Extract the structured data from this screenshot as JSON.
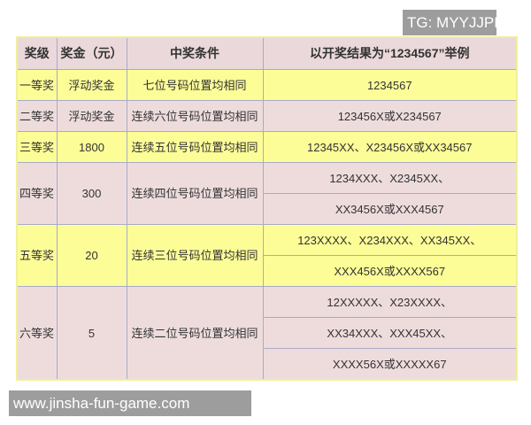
{
  "watermarks": {
    "top": "TG: MYYJJPP",
    "bottom": "www.jinsha-fun-game.com"
  },
  "colors": {
    "header_bg": "#ead8da",
    "yellow_row": "#fdfd98",
    "pink_row": "#eedcdd"
  },
  "table": {
    "headers": [
      "奖级",
      "奖金（元）",
      "中奖条件",
      "以开奖结果为“1234567”举例"
    ],
    "rows": [
      {
        "level": "一等奖",
        "prize": "浮动奖金",
        "condition": "七位号码位置均相同",
        "examples": [
          "1234567"
        ]
      },
      {
        "level": "二等奖",
        "prize": "浮动奖金",
        "condition": "连续六位号码位置均相同",
        "examples": [
          "123456X或X234567"
        ]
      },
      {
        "level": "三等奖",
        "prize": "1800",
        "condition": "连续五位号码位置均相同",
        "examples": [
          "12345XX、X23456X或XX34567"
        ]
      },
      {
        "level": "四等奖",
        "prize": "300",
        "condition": "连续四位号码位置均相同",
        "examples": [
          "1234XXX、X2345XX、",
          "XX3456X或XXX4567"
        ]
      },
      {
        "level": "五等奖",
        "prize": "20",
        "condition": "连续三位号码位置均相同",
        "examples": [
          "123XXXX、X234XXX、XX345XX、",
          "XXX456X或XXXX567"
        ]
      },
      {
        "level": "六等奖",
        "prize": "5",
        "condition": "连续二位号码位置均相同",
        "examples": [
          "12XXXXX、X23XXXX、",
          "XX34XXX、XXX45XX、",
          "XXXX56X或XXXXX67"
        ]
      }
    ]
  }
}
